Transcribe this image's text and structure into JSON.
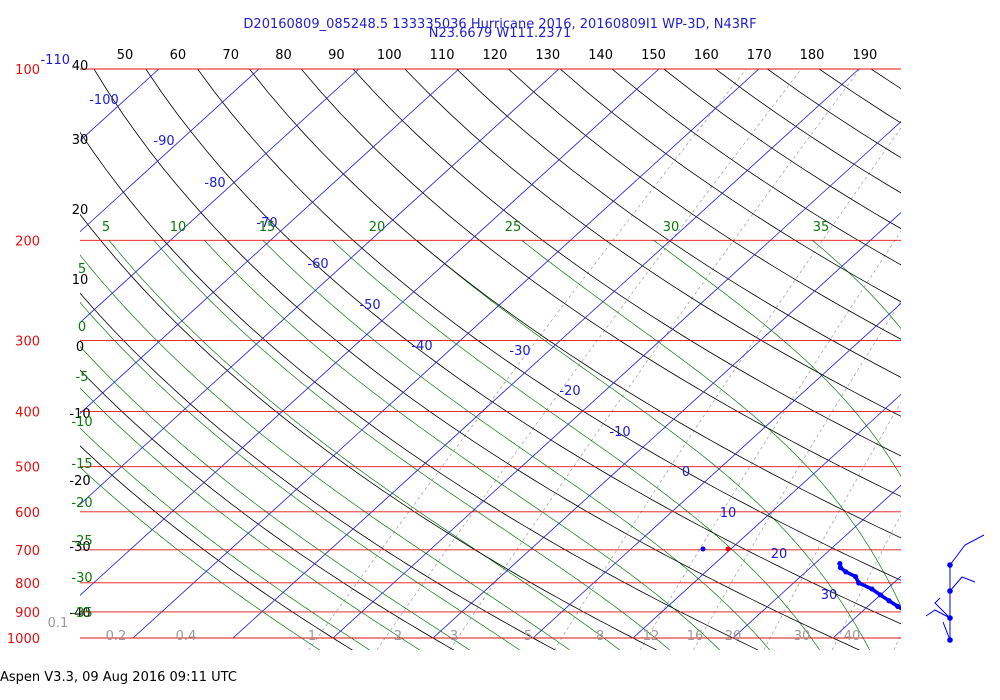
{
  "header": {
    "title_line1": "D20160809_085248.5 133335036 Hurricane 2016, 20160809I1 WP-3D, N43RF",
    "title_line2": "N23.6679 W111.2371"
  },
  "footer": {
    "text": "Aspen V3.3, 09 Aug 2016  09:11 UTC"
  },
  "colors": {
    "isobar": "#e01010",
    "isotherm": "#1a1adf",
    "dry_adiabat": "#000000",
    "moist_adiabat": "#0b7a0b",
    "mixing_ratio": "#9a9a9a",
    "temperature_trace": "#ff0000",
    "dewpoint_trace": "#0000ff"
  },
  "chart_data": {
    "type": "skew-t log-p",
    "y_axis": {
      "label": "pressure (hPa)",
      "scale": "log",
      "range": [
        1000,
        100
      ],
      "ticks": [
        "100",
        "200",
        "300",
        "400",
        "500",
        "600",
        "700",
        "800",
        "900",
        "1000"
      ]
    },
    "top_axis": {
      "label": "dry adiabat potential temperature",
      "ticks": [
        "50",
        "60",
        "70",
        "80",
        "90",
        "100",
        "110",
        "120",
        "130",
        "140",
        "150",
        "160",
        "170",
        "180",
        "190"
      ]
    },
    "left_scale_black": [
      "40",
      "30",
      "20",
      "10",
      "0",
      "-10",
      "-20",
      "-30",
      "-40"
    ],
    "left_scale_green": [
      "5",
      "0",
      "-5",
      "-10",
      "-15",
      "-20",
      "-25",
      "-30",
      "-35",
      "-40"
    ],
    "top_left_label": "-110",
    "isotherm_labels": [
      "-100",
      "-90",
      "-80",
      "-70",
      "-60",
      "-50",
      "-40",
      "-30",
      "-20",
      "-10",
      "0",
      "10",
      "20",
      "30"
    ],
    "moist_adiabat_labels": [
      "5",
      "10",
      "15",
      "20",
      "25",
      "30",
      "35"
    ],
    "mixing_ratio_labels": [
      "0.1",
      "0.2",
      "0.4",
      "1",
      "2",
      "3",
      "5",
      "8",
      "12",
      "16",
      "20",
      "30",
      "40"
    ],
    "series": [
      {
        "name": "Temperature",
        "points": [
          {
            "p": 1008,
            "t": 26.2
          },
          {
            "p": 1000,
            "t": 26.0
          },
          {
            "p": 995,
            "t": 25.7
          },
          {
            "p": 990,
            "t": 25.5
          },
          {
            "p": 980,
            "t": 24.9
          },
          {
            "p": 970,
            "t": 24.3
          },
          {
            "p": 960,
            "t": 23.7
          },
          {
            "p": 950,
            "t": 23.0
          },
          {
            "p": 940,
            "t": 22.3
          },
          {
            "p": 930,
            "t": 21.5
          },
          {
            "p": 920,
            "t": 20.8
          },
          {
            "p": 910,
            "t": 20.2
          },
          {
            "p": 900,
            "t": 19.6
          },
          {
            "p": 880,
            "t": 18.5
          },
          {
            "p": 860,
            "t": 17.3
          },
          {
            "p": 840,
            "t": 16.1
          },
          {
            "p": 820,
            "t": 14.9
          },
          {
            "p": 800,
            "t": 13.7
          },
          {
            "p": 780,
            "t": 12.5
          },
          {
            "p": 760,
            "t": 11.2
          },
          {
            "p": 745,
            "t": 10.3
          },
          {
            "p": 735,
            "t": 9.7
          },
          {
            "p": 728,
            "t": 9.4
          }
        ]
      },
      {
        "name": "Dewpoint",
        "points": [
          {
            "p": 1008,
            "t": 19.8
          },
          {
            "p": 1000,
            "t": 19.6
          },
          {
            "p": 990,
            "t": 20.5
          },
          {
            "p": 980,
            "t": 21.3
          },
          {
            "p": 970,
            "t": 20.6
          },
          {
            "p": 960,
            "t": 19.5
          },
          {
            "p": 950,
            "t": 18.2
          },
          {
            "p": 940,
            "t": 16.8
          },
          {
            "p": 920,
            "t": 15.5
          },
          {
            "p": 900,
            "t": 14.5
          },
          {
            "p": 880,
            "t": 13.0
          },
          {
            "p": 860,
            "t": 11.5
          },
          {
            "p": 840,
            "t": 10.0
          },
          {
            "p": 820,
            "t": 8.5
          },
          {
            "p": 800,
            "t": 6.5
          },
          {
            "p": 780,
            "t": 5.5
          },
          {
            "p": 765,
            "t": 4.0
          },
          {
            "p": 752,
            "t": 3.0
          },
          {
            "p": 740,
            "t": 2.5
          }
        ]
      }
    ],
    "wind_barbs_level_hpa": [
      1000,
      925,
      850,
      800,
      700
    ]
  }
}
